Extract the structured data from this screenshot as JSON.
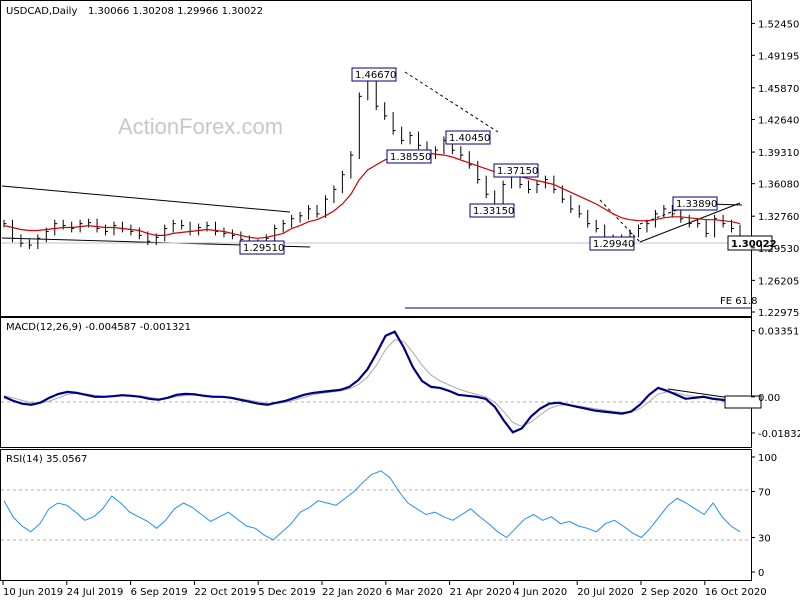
{
  "header": {
    "symbol_timeframe": "USDCAD,Daily",
    "ohlc": "1.30066 1.30208 1.29966 1.30022"
  },
  "watermark": "ActionForex.com",
  "colors": {
    "price_bars": "#000000",
    "moving_average": "#d40000",
    "macd_line": "#000080",
    "macd_signal": "#aaaaaa",
    "rsi_line": "#1e90ff",
    "trendlines": "#000000",
    "fe_line": "#000080",
    "label_border": "#000080"
  },
  "chart_data": [
    {
      "type": "line",
      "panel": "price",
      "ylim": [
        1.22975,
        1.53
      ],
      "y_ticks": [
        "1.52450",
        "1.49195",
        "1.45870",
        "1.42640",
        "1.39310",
        "1.36080",
        "1.32760",
        "1.29530",
        "1.26205",
        "1.22975"
      ],
      "current_price": "1.30022",
      "x_tick_labels": [
        "10 Jun 2019",
        "24 Jul 2019",
        "6 Sep 2019",
        "22 Oct 2019",
        "5 Dec 2019",
        "22 Jan 2020",
        "6 Mar 2020",
        "21 Apr 2020",
        "4 Jun 2020",
        "20 Jul 2020",
        "2 Sep 2020",
        "16 Oct 2020"
      ],
      "series": [
        {
          "values": [
            1.32,
            1.305,
            1.3,
            1.298,
            1.305,
            1.312,
            1.32,
            1.318,
            1.315,
            1.32,
            1.321,
            1.315,
            1.312,
            1.318,
            1.315,
            1.312,
            1.308,
            1.302,
            1.306,
            1.315,
            1.32,
            1.318,
            1.312,
            1.316,
            1.318,
            1.312,
            1.31,
            1.308,
            1.304,
            1.296,
            1.3,
            1.305,
            1.315,
            1.32,
            1.325,
            1.328,
            1.335,
            1.33,
            1.345,
            1.355,
            1.37,
            1.39,
            1.45,
            1.4667,
            1.44,
            1.43,
            1.415,
            1.405,
            1.41,
            1.4,
            1.39,
            1.395,
            1.405,
            1.395,
            1.39,
            1.38,
            1.365,
            1.35,
            1.335,
            1.36,
            1.37,
            1.36,
            1.355,
            1.36,
            1.365,
            1.355,
            1.345,
            1.335,
            1.33,
            1.32,
            1.315,
            1.305,
            1.2994,
            1.305,
            1.31,
            1.315,
            1.32,
            1.33,
            1.335,
            1.33,
            1.325,
            1.32,
            1.32,
            1.31,
            1.325,
            1.32,
            1.315,
            1.3002
          ]
        },
        {
          "name": "",
          "values": [
            1.318,
            1.316,
            1.314,
            1.313,
            1.313,
            1.314,
            1.315,
            1.316,
            1.316,
            1.317,
            1.318,
            1.317,
            1.316,
            1.316,
            1.315,
            1.314,
            1.313,
            1.31,
            1.308,
            1.308,
            1.31,
            1.311,
            1.312,
            1.313,
            1.314,
            1.313,
            1.312,
            1.31,
            1.308,
            1.306,
            1.305,
            1.306,
            1.308,
            1.31,
            1.315,
            1.318,
            1.322,
            1.324,
            1.328,
            1.333,
            1.34,
            1.35,
            1.365,
            1.375,
            1.38,
            1.385,
            1.388,
            1.39,
            1.392,
            1.393,
            1.392,
            1.391,
            1.39,
            1.388,
            1.385,
            1.382,
            1.379,
            1.376,
            1.373,
            1.371,
            1.37,
            1.368,
            1.366,
            1.364,
            1.362,
            1.36,
            1.356,
            1.352,
            1.348,
            1.344,
            1.34,
            1.335,
            1.33,
            1.326,
            1.324,
            1.323,
            1.323,
            1.324,
            1.326,
            1.327,
            1.327,
            1.326,
            1.325,
            1.324,
            1.324,
            1.323,
            1.322,
            1.32
          ]
        }
      ],
      "annotations": [
        "1.46670",
        "1.38550",
        "1.40450",
        "1.37150",
        "1.33150",
        "1.29510",
        "1.29940",
        "1.33890",
        "FE 61.8"
      ]
    },
    {
      "type": "line",
      "panel": "macd",
      "title": "MACD(12,26,9) -0.004587 -0.001321",
      "ylim": [
        -0.0224,
        0.0364
      ],
      "y_ticks": [
        "0.033515",
        "0.00",
        "-0.018324"
      ],
      "series": [
        {
          "values": [
            0.0,
            -0.002,
            -0.0035,
            -0.004,
            -0.003,
            -0.0005,
            0.0015,
            0.0025,
            0.002,
            0.001,
            0.0,
            0.0,
            0.0003,
            0.0008,
            0.0005,
            0.0,
            -0.001,
            -0.0015,
            -0.0005,
            0.001,
            0.0015,
            0.0012,
            0.0005,
            0.0,
            0.0,
            -0.0005,
            -0.0015,
            -0.0025,
            -0.0035,
            -0.004,
            -0.003,
            -0.002,
            -0.0005,
            0.001,
            0.002,
            0.0025,
            0.003,
            0.0035,
            0.005,
            0.0085,
            0.014,
            0.022,
            0.031,
            0.033,
            0.025,
            0.015,
            0.008,
            0.005,
            0.0045,
            0.003,
            0.001,
            0.0005,
            0.0,
            -0.001,
            -0.005,
            -0.012,
            -0.018,
            -0.016,
            -0.01,
            -0.006,
            -0.0035,
            -0.003,
            -0.004,
            -0.005,
            -0.006,
            -0.007,
            -0.0075,
            -0.008,
            -0.0085,
            -0.0075,
            -0.004,
            0.001,
            0.0045,
            0.003,
            0.001,
            -0.001,
            -0.0005,
            0.0,
            -0.001,
            -0.0015,
            -0.0025,
            -0.0046
          ]
        },
        {
          "values": [
            0.0005,
            -0.0005,
            -0.0018,
            -0.003,
            -0.0032,
            -0.0022,
            -0.0005,
            0.0012,
            0.0018,
            0.0015,
            0.0008,
            0.0003,
            0.0002,
            0.0004,
            0.0006,
            0.0004,
            -0.0003,
            -0.0009,
            -0.0008,
            0.0,
            0.0008,
            0.0011,
            0.0009,
            0.0004,
            0.0001,
            -0.0002,
            -0.0009,
            -0.0017,
            -0.0026,
            -0.0034,
            -0.0034,
            -0.0028,
            -0.0016,
            -0.0003,
            0.001,
            0.0018,
            0.0024,
            0.003,
            0.004,
            0.0062,
            0.01,
            0.016,
            0.024,
            0.029,
            0.028,
            0.0225,
            0.016,
            0.011,
            0.008,
            0.006,
            0.004,
            0.0025,
            0.0012,
            0.0,
            -0.0028,
            -0.0075,
            -0.013,
            -0.015,
            -0.0128,
            -0.0092,
            -0.006,
            -0.0043,
            -0.004,
            -0.0045,
            -0.0052,
            -0.006,
            -0.0067,
            -0.0073,
            -0.0079,
            -0.0078,
            -0.006,
            -0.0025,
            0.0015,
            0.0025,
            0.002,
            0.0008,
            0.0002,
            0.0,
            -0.0005,
            -0.001,
            -0.0017,
            -0.0013
          ]
        }
      ]
    },
    {
      "type": "line",
      "panel": "rsi",
      "title": "RSI(14) 35.0567",
      "ylim": [
        0,
        100
      ],
      "y_ticks": [
        "100",
        "70",
        "30",
        "0"
      ],
      "levels": [
        70,
        30
      ],
      "series": [
        {
          "values": [
            62,
            48,
            40,
            35,
            42,
            55,
            60,
            58,
            52,
            45,
            48,
            55,
            66,
            60,
            52,
            48,
            44,
            38,
            45,
            55,
            60,
            56,
            50,
            44,
            48,
            52,
            46,
            40,
            38,
            32,
            28,
            35,
            42,
            52,
            56,
            62,
            60,
            58,
            64,
            70,
            78,
            85,
            88,
            82,
            70,
            60,
            55,
            50,
            52,
            48,
            45,
            50,
            55,
            48,
            42,
            35,
            30,
            38,
            46,
            50,
            45,
            48,
            42,
            44,
            40,
            38,
            35,
            42,
            45,
            40,
            34,
            30,
            38,
            48,
            58,
            64,
            60,
            55,
            50,
            60,
            48,
            40,
            35
          ]
        }
      ]
    }
  ]
}
